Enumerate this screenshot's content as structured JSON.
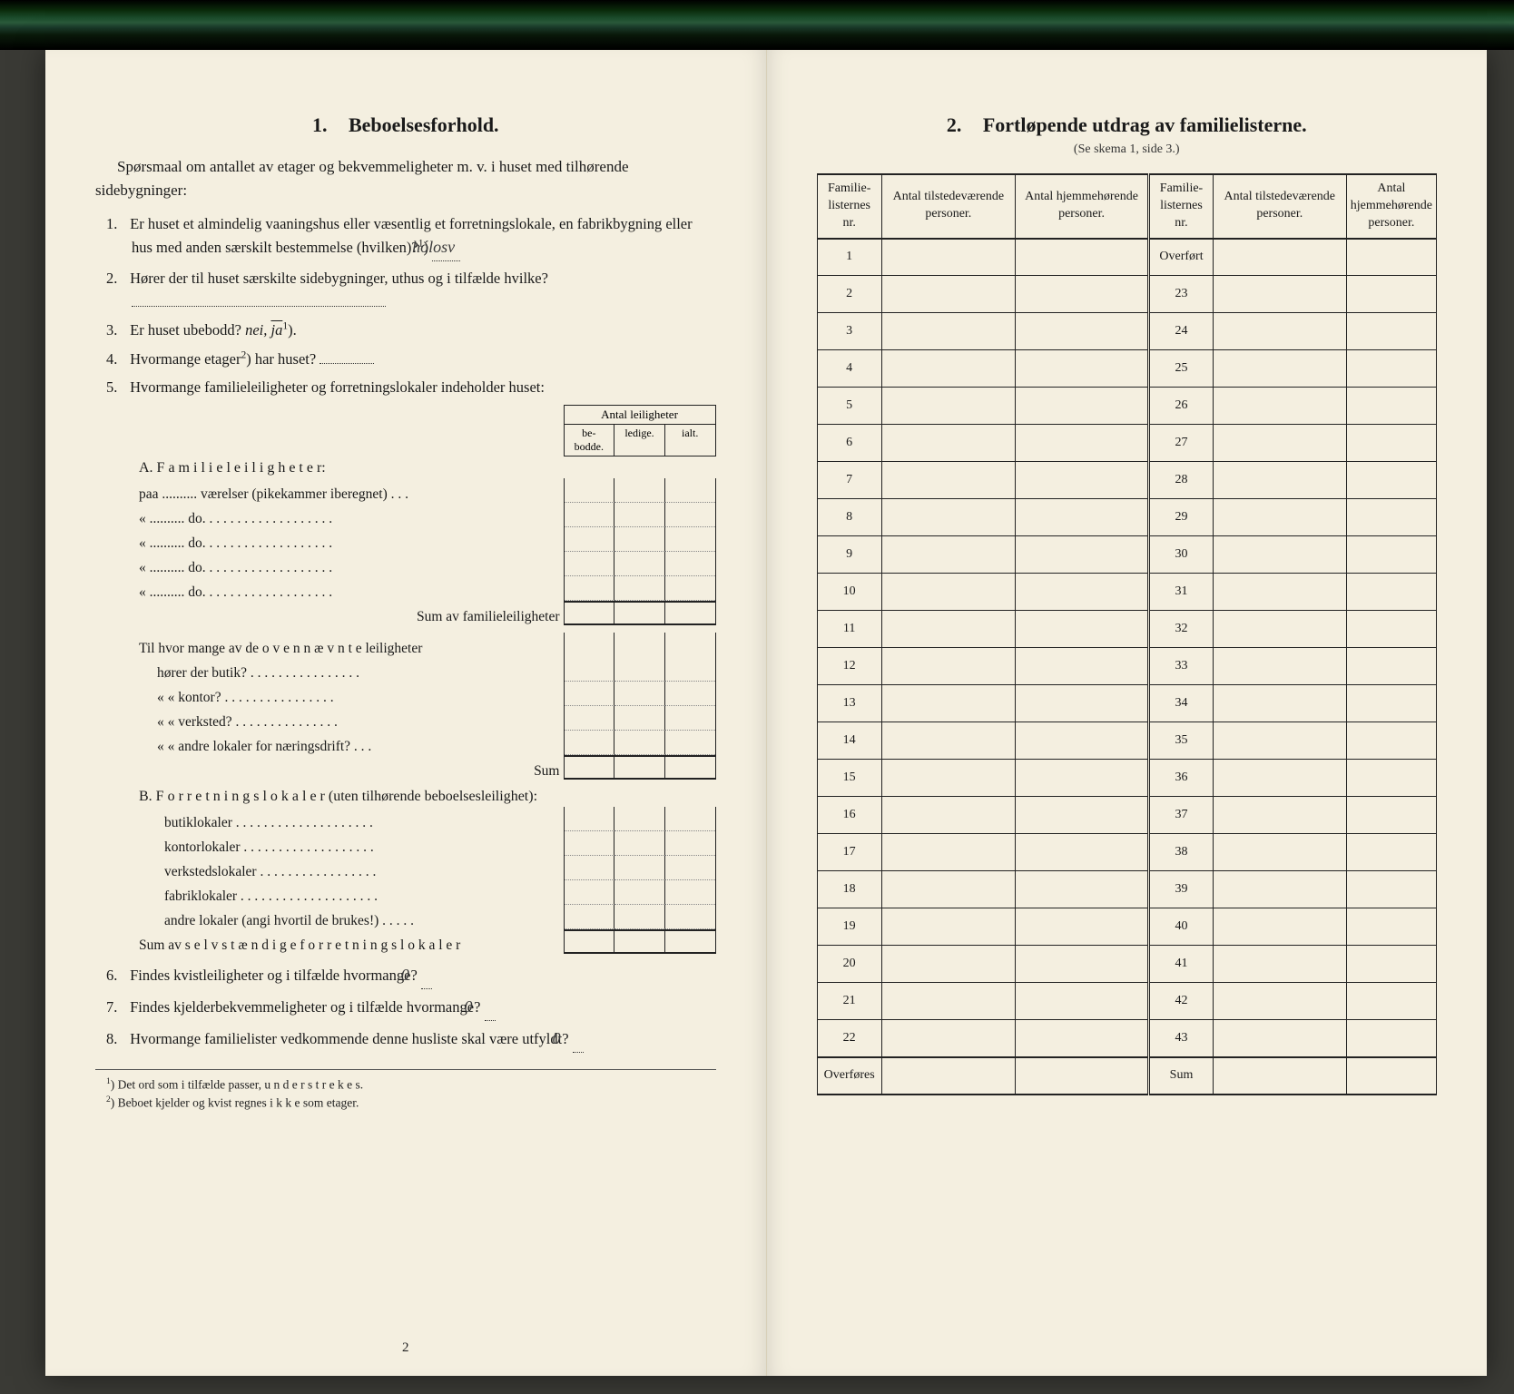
{
  "leftPage": {
    "heading_num": "1.",
    "heading": "Beboelsesforhold.",
    "intro": "Spørsmaal om antallet av etager og bekvemmeligheter m. v. i huset med tilhørende sidebygninger:",
    "q1_num": "1.",
    "q1": "Er huset et almindelig vaaningshus eller væsentlig et forretningslokale, en fabrikbygning eller hus med anden særskilt bestemmelse (hvilken)?",
    "q1_hand": "hólosv",
    "q2_num": "2.",
    "q2": "Hører der til huset særskilte sidebygninger, uthus og i tilfælde hvilke?",
    "q3_num": "3.",
    "q3_a": "Er huset ubebodd?",
    "q3_nei": "nei,",
    "q3_ja": "ja",
    "q4_num": "4.",
    "q4_a": "Hvormange etager",
    "q4_b": ") har huset?",
    "q5_num": "5.",
    "q5": "Hvormange familieleiligheter og forretningslokaler indeholder huset:",
    "mini_header": "Antal leiligheter",
    "mini_c1": "be-\nbodde.",
    "mini_c2": "ledige.",
    "mini_c3": "ialt.",
    "A_title_1": "A. F a m i l i e l e i l i g h e t e r:",
    "A_row1": "paa .......... værelser (pikekammer iberegnet) . . .",
    "A_row_do": "«   ..........    do.    . . . . . . . . . . . . . . . . . .",
    "A_sum": "Sum av familieleiligheter",
    "A_mid1": "Til hvor mange av de o v e n n æ v n t e leiligheter",
    "A_mid2": "hører der butik? . . . . . . . . . . . . . . . .",
    "A_mid3": "«     «   kontor? . . . . . . . . . . . . . . . .",
    "A_mid4": "«     «   verksted? . . . . . . . . . . . . . . .",
    "A_mid5": "«     «   andre lokaler for næringsdrift?  . . .",
    "A_mid_sum": "Sum",
    "B_title": "B. F o r r e t n i n g s l o k a l e r  (uten tilhørende beboelsesleilighet):",
    "B_row1": "butiklokaler . . . . . . . . . . . . . . . . . . . .",
    "B_row2": "kontorlokaler . . . . . . . . . . . . . . . . . . .",
    "B_row3": "verkstedslokaler . . . . . . . . . . . . . . . . .",
    "B_row4": "fabriklokaler . . . . . . . . . . . . . . . . . . . .",
    "B_row5": "andre lokaler (angi hvortil de brukes!) . . . . .",
    "B_sum": "Sum av s e l v s t æ n d i g e  f o r r e t n i n g s l o k a l e r",
    "q6_num": "6.",
    "q6": "Findes kvistleiligheter og i tilfælde hvormange?",
    "q6_hand": "0",
    "q7_num": "7.",
    "q7": "Findes kjelderbekvemmeligheter og i tilfælde hvormange?",
    "q7_hand": "0",
    "q8_num": "8.",
    "q8": "Hvormange familielister vedkommende denne husliste skal være utfyldt?",
    "q8_hand": "0",
    "fn1": "Det ord som i tilfælde passer, u n d e r s t r e k e s.",
    "fn2": "Beboet kjelder og kvist regnes  i k k e  som etager.",
    "page_num": "2"
  },
  "rightPage": {
    "heading_num": "2.",
    "heading": "Fortløpende utdrag av familielisterne.",
    "sub": "(Se skema 1, side 3.)",
    "h1": "Familie-listernes nr.",
    "h2": "Antal tilstedeværende personer.",
    "h3": "Antal hjemmehørende personer.",
    "h4": "Familie-listernes nr.",
    "h5": "Antal tilstedeværende personer.",
    "h6": "Antal hjemmehørende personer.",
    "rows_left": [
      "1",
      "2",
      "3",
      "4",
      "5",
      "6",
      "7",
      "8",
      "9",
      "10",
      "11",
      "12",
      "13",
      "14",
      "15",
      "16",
      "17",
      "18",
      "19",
      "20",
      "21",
      "22",
      "Overføres"
    ],
    "rows_right": [
      "Overført",
      "23",
      "24",
      "25",
      "26",
      "27",
      "28",
      "29",
      "30",
      "31",
      "32",
      "33",
      "34",
      "35",
      "36",
      "37",
      "38",
      "39",
      "40",
      "41",
      "42",
      "43",
      "Sum"
    ]
  },
  "style": {
    "paper_bg": "#f4efe0",
    "ink": "#1a1a1a",
    "border": "#222222",
    "dotted": "#888888",
    "font_body_pt": 16.5,
    "font_heading_pt": 22,
    "font_table_pt": 14
  }
}
